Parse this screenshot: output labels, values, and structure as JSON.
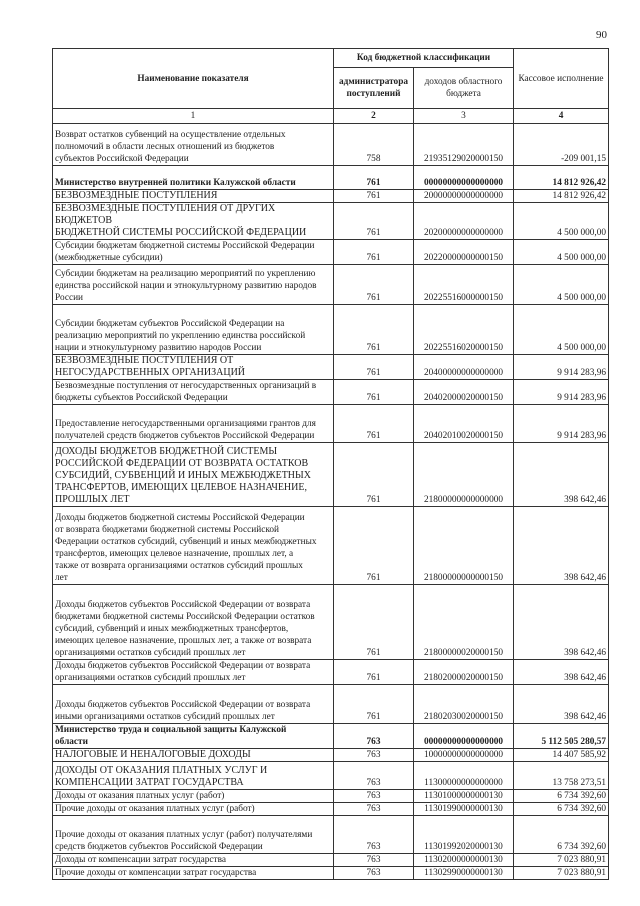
{
  "page_number": "90",
  "header": {
    "col_name": "Наименование показателя",
    "group_code": "Код бюджетной классификации",
    "col_admin": "администратора поступлений",
    "col_income": "доходов областного бюджета",
    "col_exec": "Кассовое исполнение",
    "num1": "1",
    "num2": "2",
    "num3": "3",
    "num4": "4"
  },
  "rows": [
    {
      "name": "Возврат остатков субвенций на осуществление отдельных\nполномочий в области лесных отношений из бюджетов\nсубъектов Российской Федерации",
      "admin": "758",
      "code": "21935129020000150",
      "amount": "-209 001,15",
      "h": 42
    },
    {
      "name": "Министерство внутренней политики Калужской области",
      "admin": "761",
      "code": "00000000000000000",
      "amount": "14 812 926,42",
      "h": 24,
      "bold": true
    },
    {
      "name": "БЕЗВОЗМЕЗДНЫЕ ПОСТУПЛЕНИЯ",
      "admin": "761",
      "code": "20000000000000000",
      "amount": "14 812 926,42",
      "h": 12,
      "caps": true
    },
    {
      "name": "БЕЗВОЗМЕЗДНЫЕ ПОСТУПЛЕНИЯ ОТ ДРУГИХ БЮДЖЕТОВ\nБЮДЖЕТНОЙ СИСТЕМЫ РОССИЙСКОЙ ФЕДЕРАЦИИ",
      "admin": "761",
      "code": "20200000000000000",
      "amount": "4 500 000,00",
      "h": 37,
      "caps": true
    },
    {
      "name": "Субсидии бюджетам бюджетной системы Российской Федерации\n(межбюджетные субсидии)",
      "admin": "761",
      "code": "20220000000000150",
      "amount": "4 500 000,00",
      "h": 25
    },
    {
      "name": "Субсидии бюджетам на реализацию мероприятий по укреплению\nединства российской нации и этнокультурному развитию народов\nРоссии",
      "admin": "761",
      "code": "20225516000000150",
      "amount": "4 500 000,00",
      "h": 40
    },
    {
      "name": "Субсидии бюджетам субъектов Российской Федерации на\nреализацию мероприятий по укреплению единства российской\nнации и этнокультурному развитию народов России",
      "admin": "761",
      "code": "20225516020000150",
      "amount": "4 500 000,00",
      "h": 50
    },
    {
      "name": "БЕЗВОЗМЕЗДНЫЕ ПОСТУПЛЕНИЯ ОТ\nНЕГОСУДАРСТВЕННЫХ ОРГАНИЗАЦИЙ",
      "admin": "761",
      "code": "20400000000000000",
      "amount": "9 914 283,96",
      "h": 25,
      "caps": true
    },
    {
      "name": "Безвозмездные поступления от негосударственных организаций в\nбюджеты субъектов Российской Федерации",
      "admin": "761",
      "code": "20402000020000150",
      "amount": "9 914 283,96",
      "h": 25
    },
    {
      "name": "Предоставление негосударственными организациями грантов для\nполучателей средств бюджетов субъектов Российской Федерации",
      "admin": "761",
      "code": "20402010020000150",
      "amount": "9 914 283,96",
      "h": 38
    },
    {
      "name": "ДОХОДЫ БЮДЖЕТОВ БЮДЖЕТНОЙ СИСТЕМЫ\nРОССИЙСКОЙ ФЕДЕРАЦИИ ОТ ВОЗВРАТА ОСТАТКОВ\nСУБСИДИЙ, СУБВЕНЦИЙ И ИНЫХ МЕЖБЮДЖЕТНЫХ\nТРАНСФЕРТОВ, ИМЕЮЩИХ ЦЕЛЕВОЕ НАЗНАЧЕНИЕ,\nПРОШЛЫХ ЛЕТ",
      "admin": "761",
      "code": "21800000000000000",
      "amount": "398 642,46",
      "h": 64,
      "caps": true
    },
    {
      "name": "Доходы бюджетов бюджетной системы Российской Федерации\nот возврата бюджетами бюджетной системы Российской\nФедерации остатков субсидий, субвенций и иных межбюджетных\nтрансфертов, имеющих целевое назначение, прошлых лет, а\nтакже от возврата организациями остатков субсидий прошлых\nлет",
      "admin": "761",
      "code": "21800000000000150",
      "amount": "398 642,46",
      "h": 78
    },
    {
      "name": "Доходы бюджетов субъектов Российской Федерации от возврата\nбюджетами бюджетной системы Российской Федерации остатков\nсубсидий, субвенций и иных межбюджетных трансфертов,\nимеющих целевое назначение, прошлых лет, а также от возврата\nорганизациями остатков субсидий прошлых лет",
      "admin": "761",
      "code": "21800000020000150",
      "amount": "398 642,46",
      "h": 75
    },
    {
      "name": "Доходы бюджетов субъектов Российской Федерации от возврата\nорганизациями остатков субсидий прошлых лет",
      "admin": "761",
      "code": "21802000020000150",
      "amount": "398 642,46",
      "h": 25
    },
    {
      "name": "Доходы бюджетов субъектов Российской Федерации от возврата\nиными организациями остатков субсидий прошлых лет",
      "admin": "761",
      "code": "21802030020000150",
      "amount": "398 642,46",
      "h": 39
    },
    {
      "name": "Министерство труда и социальной защиты Калужской\nобласти",
      "admin": "763",
      "code": "00000000000000000",
      "amount": "5 112 505 280,57",
      "h": 24,
      "bold": true
    },
    {
      "name": "НАЛОГОВЫЕ И НЕНАЛОГОВЫЕ ДОХОДЫ",
      "admin": "763",
      "code": "10000000000000000",
      "amount": "14 407 585,92",
      "h": 12,
      "caps": true
    },
    {
      "name": "ДОХОДЫ ОТ ОКАЗАНИЯ ПЛАТНЫХ УСЛУГ И\nКОМПЕНСАЦИИ ЗАТРАТ ГОСУДАРСТВА",
      "admin": "763",
      "code": "11300000000000000",
      "amount": "13 758 273,51",
      "h": 28,
      "caps": true
    },
    {
      "name": "Доходы от оказания платных услуг (работ)",
      "admin": "763",
      "code": "11301000000000130",
      "amount": "6 734 392,60",
      "h": 12
    },
    {
      "name": "Прочие доходы от оказания платных услуг (работ)",
      "admin": "763",
      "code": "11301990000000130",
      "amount": "6 734 392,60",
      "h": 12
    },
    {
      "name": "Прочие доходы от оказания платных услуг (работ) получателями\nсредств бюджетов субъектов Российской Федерации",
      "admin": "763",
      "code": "11301992020000130",
      "amount": "6 734 392,60",
      "h": 38
    },
    {
      "name": "Доходы от компенсации затрат государства",
      "admin": "763",
      "code": "11302000000000130",
      "amount": "7 023 880,91",
      "h": 12
    },
    {
      "name": "Прочие доходы от компенсации затрат государства",
      "admin": "763",
      "code": "11302990000000130",
      "amount": "7 023 880,91",
      "h": 12
    }
  ]
}
